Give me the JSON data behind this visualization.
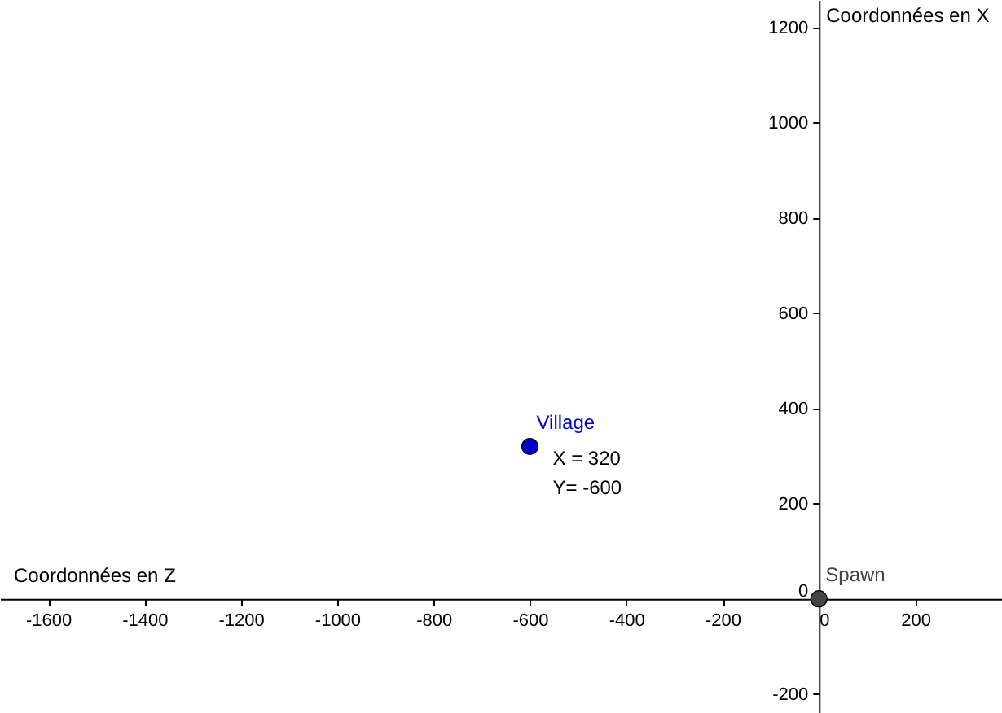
{
  "chart_data": {
    "type": "scatter",
    "xlabel": "Coordonnées en Z",
    "ylabel": "Coordonnées en X",
    "series": [
      {
        "name": "Village",
        "color": "#0000cc",
        "x": [
          -600
        ],
        "values": [
          320
        ]
      },
      {
        "name": "Spawn",
        "color": "#444444",
        "x": [
          0
        ],
        "values": [
          0
        ]
      }
    ],
    "annotations": [
      {
        "text": "X = 320",
        "x": -600,
        "y": 320
      },
      {
        "text": "Y= -600",
        "x": -600,
        "y": 320
      }
    ],
    "xlim": [
      -1700,
      380
    ],
    "xticks": [
      -1600,
      -1400,
      -1200,
      -1000,
      -800,
      -600,
      -400,
      -200,
      0,
      200
    ],
    "ylim": [
      -240,
      1258
    ],
    "yticks": [
      -200,
      0,
      200,
      400,
      600,
      800,
      1000,
      1200
    ],
    "grid": false,
    "marker": "circle"
  }
}
